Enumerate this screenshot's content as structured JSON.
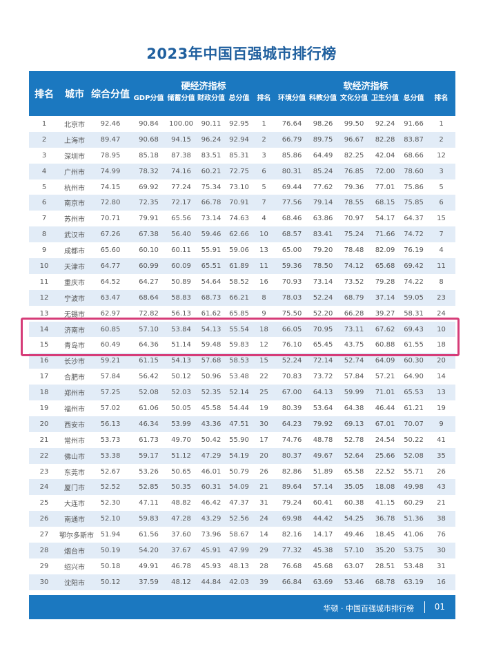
{
  "title": "2023年中国百强城市排行榜",
  "header": {
    "rank": "排名",
    "city": "城市",
    "composite": "综合分值",
    "hard_group": "硬经济指标",
    "soft_group": "软经济指标",
    "hard_cols": [
      "GDP分值",
      "储蓄分值",
      "财政分值",
      "总分值",
      "排名"
    ],
    "soft_cols": [
      "环境分值",
      "科教分值",
      "文化分值",
      "卫生分值",
      "总分值",
      "排名"
    ]
  },
  "highlight_color": "#d63c78",
  "header_color": "#1b78c0",
  "rows": [
    [
      "1",
      "北京市",
      "92.46",
      "90.84",
      "100.00",
      "90.11",
      "92.95",
      "1",
      "76.64",
      "98.26",
      "99.50",
      "92.24",
      "91.66",
      "1"
    ],
    [
      "2",
      "上海市",
      "89.47",
      "90.68",
      "94.15",
      "96.24",
      "92.94",
      "2",
      "66.79",
      "89.75",
      "96.67",
      "82.28",
      "83.87",
      "2"
    ],
    [
      "3",
      "深圳市",
      "78.95",
      "85.18",
      "87.38",
      "83.51",
      "85.31",
      "3",
      "85.86",
      "64.49",
      "82.25",
      "42.04",
      "68.66",
      "12"
    ],
    [
      "4",
      "广州市",
      "74.99",
      "78.32",
      "74.16",
      "60.21",
      "72.75",
      "6",
      "80.31",
      "85.24",
      "76.85",
      "72.00",
      "78.60",
      "3"
    ],
    [
      "5",
      "杭州市",
      "74.15",
      "69.92",
      "77.24",
      "75.34",
      "73.10",
      "5",
      "69.44",
      "77.62",
      "79.36",
      "77.01",
      "75.86",
      "5"
    ],
    [
      "6",
      "南京市",
      "72.80",
      "72.35",
      "72.17",
      "66.78",
      "70.91",
      "7",
      "77.56",
      "79.14",
      "78.55",
      "68.15",
      "75.85",
      "6"
    ],
    [
      "7",
      "苏州市",
      "70.71",
      "79.91",
      "65.56",
      "73.14",
      "74.63",
      "4",
      "68.46",
      "63.86",
      "70.97",
      "54.17",
      "64.37",
      "15"
    ],
    [
      "8",
      "武汉市",
      "67.26",
      "67.38",
      "56.40",
      "59.46",
      "62.66",
      "10",
      "68.57",
      "83.41",
      "75.24",
      "71.66",
      "74.72",
      "7"
    ],
    [
      "9",
      "成都市",
      "65.60",
      "60.10",
      "60.11",
      "55.91",
      "59.06",
      "13",
      "65.00",
      "79.20",
      "78.48",
      "82.09",
      "76.19",
      "4"
    ],
    [
      "10",
      "天津市",
      "64.77",
      "60.99",
      "60.09",
      "65.51",
      "61.89",
      "11",
      "59.36",
      "78.50",
      "74.12",
      "65.68",
      "69.42",
      "11"
    ],
    [
      "11",
      "重庆市",
      "64.52",
      "64.27",
      "50.89",
      "54.64",
      "58.52",
      "16",
      "70.93",
      "73.14",
      "73.52",
      "79.28",
      "74.22",
      "8"
    ],
    [
      "12",
      "宁波市",
      "63.47",
      "68.64",
      "58.83",
      "68.73",
      "66.21",
      "8",
      "78.03",
      "52.24",
      "68.79",
      "37.14",
      "59.05",
      "23"
    ],
    [
      "13",
      "无锡市",
      "62.97",
      "72.82",
      "56.13",
      "61.62",
      "65.85",
      "9",
      "75.50",
      "52.20",
      "66.28",
      "39.27",
      "58.31",
      "24"
    ],
    [
      "14",
      "济南市",
      "60.85",
      "57.10",
      "53.84",
      "54.13",
      "55.54",
      "18",
      "66.05",
      "70.95",
      "73.11",
      "67.62",
      "69.43",
      "10"
    ],
    [
      "15",
      "青岛市",
      "60.49",
      "64.36",
      "51.14",
      "59.48",
      "59.83",
      "12",
      "76.10",
      "65.45",
      "43.75",
      "60.88",
      "61.55",
      "18"
    ],
    [
      "16",
      "长沙市",
      "59.21",
      "61.15",
      "54.13",
      "57.68",
      "58.53",
      "15",
      "52.24",
      "72.14",
      "52.74",
      "64.09",
      "60.30",
      "20"
    ],
    [
      "17",
      "合肥市",
      "57.84",
      "56.42",
      "50.12",
      "50.96",
      "53.48",
      "22",
      "70.83",
      "73.72",
      "57.84",
      "57.21",
      "64.90",
      "14"
    ],
    [
      "18",
      "郑州市",
      "57.25",
      "52.08",
      "52.03",
      "52.35",
      "52.14",
      "25",
      "67.00",
      "64.13",
      "59.99",
      "71.01",
      "65.53",
      "13"
    ],
    [
      "19",
      "福州市",
      "57.02",
      "61.06",
      "50.05",
      "45.58",
      "54.44",
      "19",
      "80.39",
      "53.64",
      "64.38",
      "46.44",
      "61.21",
      "19"
    ],
    [
      "20",
      "西安市",
      "56.13",
      "46.34",
      "53.99",
      "43.36",
      "47.51",
      "30",
      "64.23",
      "79.92",
      "69.13",
      "67.01",
      "70.07",
      "9"
    ],
    [
      "21",
      "常州市",
      "53.73",
      "61.73",
      "49.70",
      "50.42",
      "55.90",
      "17",
      "74.76",
      "48.78",
      "52.78",
      "24.54",
      "50.22",
      "41"
    ],
    [
      "22",
      "佛山市",
      "53.38",
      "59.17",
      "51.12",
      "47.29",
      "54.19",
      "20",
      "80.37",
      "49.67",
      "52.64",
      "25.66",
      "52.08",
      "35"
    ],
    [
      "23",
      "东莞市",
      "52.67",
      "53.26",
      "50.65",
      "46.01",
      "50.79",
      "26",
      "82.86",
      "51.89",
      "65.58",
      "22.52",
      "55.71",
      "26"
    ],
    [
      "24",
      "厦门市",
      "52.52",
      "52.85",
      "50.35",
      "60.31",
      "54.09",
      "21",
      "89.64",
      "57.14",
      "35.05",
      "18.08",
      "49.98",
      "43"
    ],
    [
      "25",
      "大连市",
      "52.30",
      "47.11",
      "48.82",
      "46.42",
      "47.37",
      "31",
      "79.24",
      "60.41",
      "60.38",
      "41.15",
      "60.29",
      "21"
    ],
    [
      "26",
      "南通市",
      "52.10",
      "59.83",
      "47.28",
      "43.29",
      "52.56",
      "24",
      "69.98",
      "44.42",
      "54.25",
      "36.78",
      "51.36",
      "38"
    ],
    [
      "27",
      "鄂尔多斯市",
      "51.94",
      "61.56",
      "37.60",
      "73.96",
      "58.67",
      "14",
      "82.16",
      "14.17",
      "49.46",
      "18.45",
      "41.06",
      "76"
    ],
    [
      "28",
      "烟台市",
      "50.19",
      "54.20",
      "37.67",
      "45.91",
      "47.99",
      "29",
      "77.32",
      "45.38",
      "57.10",
      "35.20",
      "53.75",
      "30"
    ],
    [
      "29",
      "绍兴市",
      "50.18",
      "49.91",
      "46.78",
      "45.93",
      "48.13",
      "28",
      "76.68",
      "45.68",
      "63.07",
      "28.51",
      "53.48",
      "31"
    ],
    [
      "30",
      "沈阳市",
      "50.12",
      "37.59",
      "48.12",
      "44.84",
      "42.03",
      "39",
      "66.84",
      "63.69",
      "53.46",
      "68.78",
      "63.19",
      "16"
    ]
  ],
  "footer": {
    "text": "华顿 · 中国百强城市排行榜",
    "page": "01"
  }
}
